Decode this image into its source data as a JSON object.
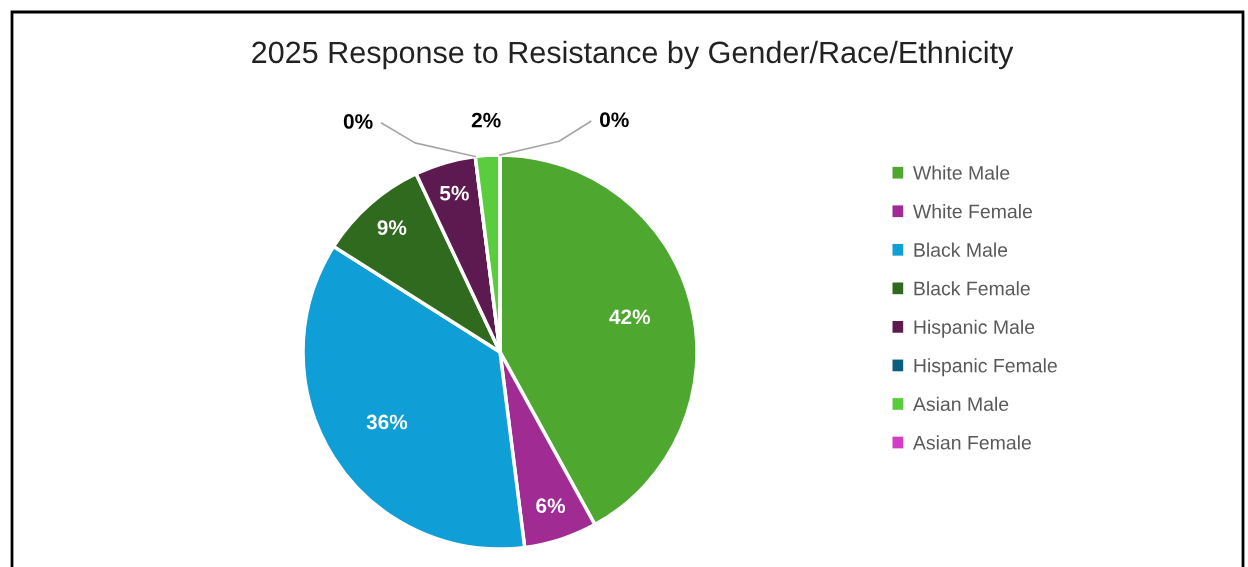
{
  "chart_data": {
    "type": "pie",
    "title": "2025 Response to Resistance by Gender/Race/Ethnicity",
    "categories": [
      "White Male",
      "White Female",
      "Black Male",
      "Black Female",
      "Hispanic Male",
      "Hispanic Female",
      "Asian Male",
      "Asian Female"
    ],
    "values": [
      42,
      6,
      36,
      9,
      5,
      0,
      2,
      0
    ],
    "colors": [
      "#4ea72e",
      "#a02b93",
      "#0f9ed5",
      "#2f6a1e",
      "#5c1a50",
      "#0b5f7c",
      "#5acd3e",
      "#d23dc5"
    ],
    "value_labels": [
      "42%",
      "6%",
      "36%",
      "9%",
      "5%",
      "0%",
      "2%",
      "0%"
    ],
    "legend": "right"
  }
}
